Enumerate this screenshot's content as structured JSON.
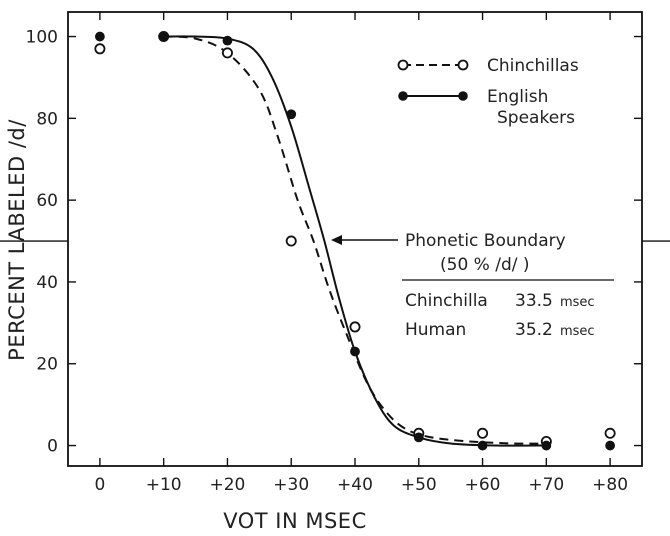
{
  "chart_data": {
    "type": "line",
    "title": "",
    "xlabel": "VOT IN MSEC",
    "ylabel": "PERCENT LABELED /d/",
    "xlim": [
      -5,
      85
    ],
    "ylim": [
      -5,
      106
    ],
    "x_ticks": [
      0,
      10,
      20,
      30,
      40,
      50,
      60,
      70,
      80
    ],
    "x_tick_labels": [
      "0",
      "+10",
      "+20",
      "+30",
      "+40",
      "+50",
      "+60",
      "+70",
      "+80"
    ],
    "y_ticks": [
      0,
      20,
      40,
      60,
      80,
      100
    ],
    "y_tick_labels": [
      "0",
      "20",
      "40",
      "60",
      "80",
      "100"
    ],
    "grid": false,
    "legend_position": "top-right",
    "series": [
      {
        "name": "Chinchillas",
        "marker": "open-circle",
        "line_style": "dashed",
        "points": [
          [
            0,
            97
          ],
          [
            10,
            100
          ],
          [
            20,
            96
          ],
          [
            30,
            50
          ],
          [
            40,
            29
          ],
          [
            50,
            3
          ],
          [
            60,
            3
          ],
          [
            70,
            1
          ],
          [
            80,
            3
          ]
        ],
        "curve": [
          [
            10,
            100
          ],
          [
            15,
            99.5
          ],
          [
            20,
            96
          ],
          [
            25,
            87
          ],
          [
            28,
            75
          ],
          [
            31,
            60
          ],
          [
            33.5,
            50
          ],
          [
            36,
            38
          ],
          [
            39,
            26
          ],
          [
            42,
            15
          ],
          [
            45,
            8
          ],
          [
            48,
            4
          ],
          [
            52,
            2
          ],
          [
            58,
            1
          ],
          [
            65,
            0.5
          ],
          [
            70,
            0.5
          ]
        ]
      },
      {
        "name": "English Speakers",
        "marker": "filled-circle",
        "line_style": "solid",
        "points": [
          [
            0,
            100
          ],
          [
            10,
            100
          ],
          [
            20,
            99
          ],
          [
            30,
            81
          ],
          [
            40,
            23
          ],
          [
            50,
            2
          ],
          [
            60,
            0
          ],
          [
            70,
            0
          ],
          [
            80,
            0
          ]
        ],
        "curve": [
          [
            10,
            100
          ],
          [
            15,
            100
          ],
          [
            20,
            99.5
          ],
          [
            24,
            97
          ],
          [
            27,
            90
          ],
          [
            30,
            78
          ],
          [
            33,
            62
          ],
          [
            35.2,
            50
          ],
          [
            37.5,
            36
          ],
          [
            40,
            23
          ],
          [
            43,
            12
          ],
          [
            46,
            5
          ],
          [
            50,
            2
          ],
          [
            55,
            0.5
          ],
          [
            62,
            0
          ],
          [
            70,
            0
          ]
        ]
      }
    ],
    "annotations": {
      "boundary_title_line1": "Phonetic Boundary",
      "boundary_title_line2": "(50 % /d/ )",
      "rows": [
        {
          "label": "Chinchilla",
          "value": "33.5",
          "unit": "msec"
        },
        {
          "label": "Human",
          "value": "35.2",
          "unit": "msec"
        }
      ]
    }
  }
}
